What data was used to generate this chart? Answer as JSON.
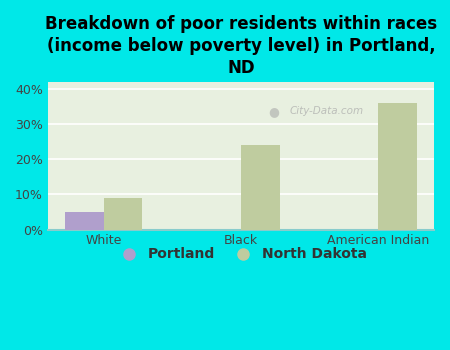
{
  "title": "Breakdown of poor residents within races\n(income below poverty level) in Portland,\nND",
  "categories": [
    "White",
    "Black",
    "American Indian"
  ],
  "portland_values": [
    5.0,
    0,
    0
  ],
  "nd_values": [
    9.0,
    24.0,
    36.0
  ],
  "portland_color": "#b09fcc",
  "nd_color": "#bfcc9f",
  "background_color": "#00e8e8",
  "plot_bg_color": "#e8f0e0",
  "ylim": [
    0,
    42
  ],
  "yticks": [
    0,
    10,
    20,
    30,
    40
  ],
  "ytick_labels": [
    "0%",
    "10%",
    "20%",
    "30%",
    "40%"
  ],
  "bar_width": 0.28,
  "title_fontsize": 12,
  "tick_fontsize": 9,
  "legend_fontsize": 10,
  "watermark": "City-Data.com"
}
